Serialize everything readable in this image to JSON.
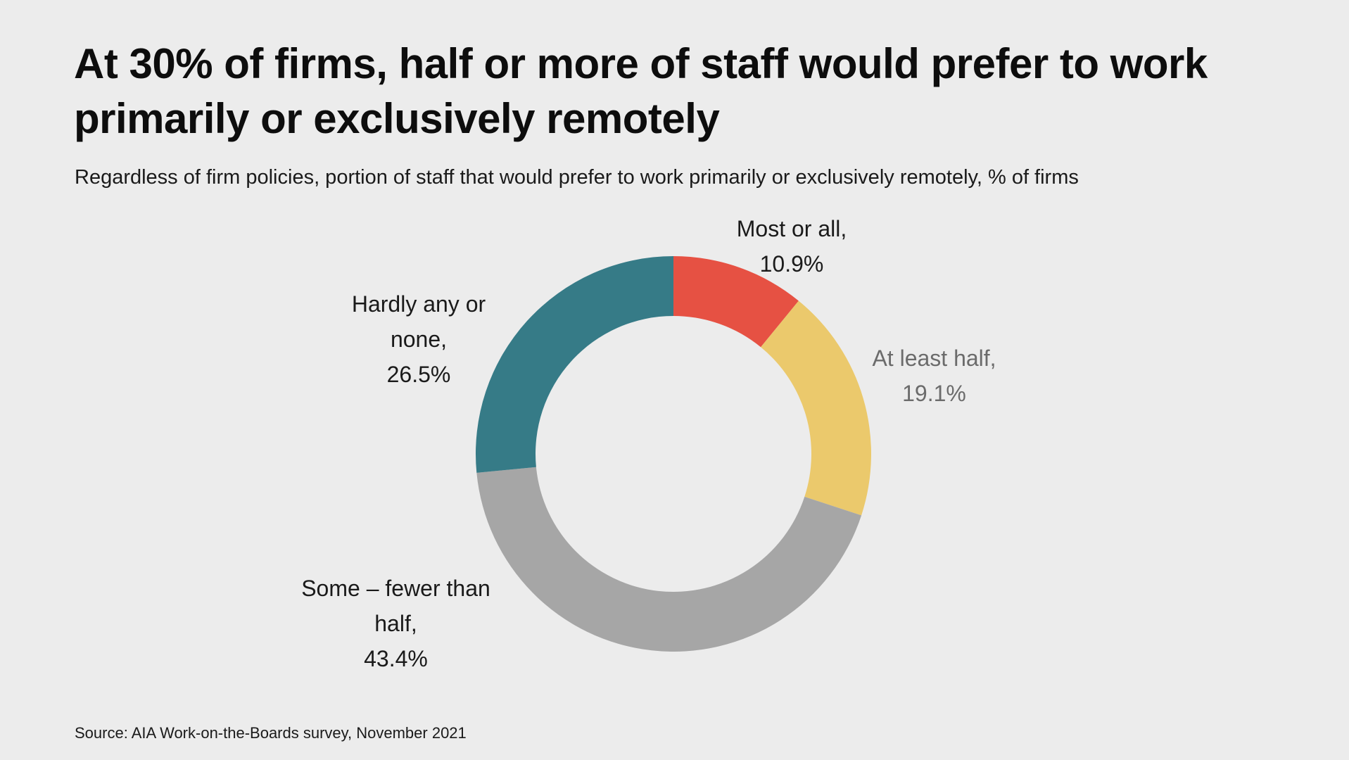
{
  "chart_data": {
    "type": "pie",
    "title": "At 30% of firms, half or more of staff would prefer to work primarily or exclusively remotely",
    "subtitle": "Regardless of firm policies, portion of staff that would prefer to work primarily or exclusively remotely, % of firms",
    "source": "Source: AIA Work-on-the-Boards survey, November 2021",
    "donut": true,
    "slices": [
      {
        "category": "Most or all,",
        "value": 10.9,
        "value_label": "10.9%",
        "color": "#e65143",
        "label_color": "#1a1a1a"
      },
      {
        "category": "At least half,",
        "value": 19.1,
        "value_label": "19.1%",
        "color": "#ebc96c",
        "label_color": "#6b6b6b"
      },
      {
        "category": "Some – fewer than half,",
        "value": 43.4,
        "value_label": "43.4%",
        "color": "#a6a6a6",
        "label_color": "#1a1a1a"
      },
      {
        "category": "Hardly any or none,",
        "value": 26.5,
        "value_label": "26.5%",
        "color": "#367b87",
        "label_color": "#1a1a1a"
      }
    ]
  }
}
